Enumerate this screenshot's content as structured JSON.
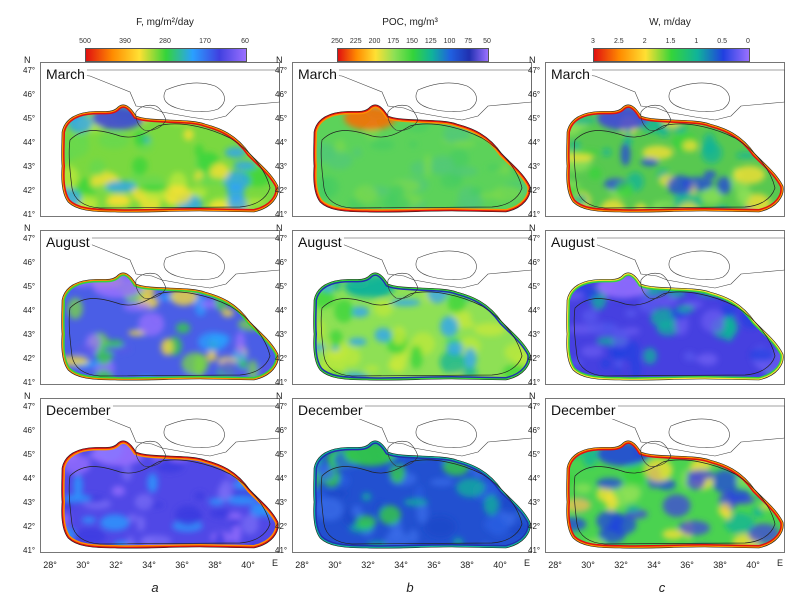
{
  "colorbars": [
    {
      "title": "F, mg/m²/day",
      "ticks": [
        "500",
        "390",
        "280",
        "170",
        "60"
      ],
      "colors": [
        "#e01010",
        "#ff8c00",
        "#ffe033",
        "#34d43a",
        "#2aa0ff",
        "#4040e0",
        "#9a70ff"
      ]
    },
    {
      "title": "POC, mg/m³",
      "ticks": [
        "250",
        "225",
        "200",
        "175",
        "150",
        "125",
        "100",
        "75",
        "50"
      ],
      "colors": [
        "#e01010",
        "#ff8c00",
        "#ffe033",
        "#8ee055",
        "#34d43a",
        "#10b39a",
        "#2060e0",
        "#2030b0",
        "#9a70ff"
      ]
    },
    {
      "title": "W, m/day",
      "ticks": [
        "3",
        "2.5",
        "2",
        "1.5",
        "1",
        "0.5",
        "0"
      ],
      "colors": [
        "#e01010",
        "#ff8c00",
        "#ffe033",
        "#34d43a",
        "#10b39a",
        "#2040e0",
        "#9a70ff"
      ]
    }
  ],
  "rows": [
    {
      "month": "March"
    },
    {
      "month": "August"
    },
    {
      "month": "December"
    }
  ],
  "columns": [
    "a",
    "b",
    "c"
  ],
  "panels": [
    [
      "f-mar",
      "p-mar",
      "w-mar"
    ],
    [
      "f-aug",
      "p-aug",
      "w-aug"
    ],
    [
      "f-dec",
      "p-dec",
      "w-dec"
    ]
  ],
  "lat_ticks": [
    "47°",
    "46°",
    "45°",
    "44°",
    "43°",
    "42°",
    "41°"
  ],
  "lon_ticks": [
    "28°",
    "30°",
    "32°",
    "34°",
    "36°",
    "38°",
    "40°"
  ],
  "north": "N",
  "east": "E"
}
